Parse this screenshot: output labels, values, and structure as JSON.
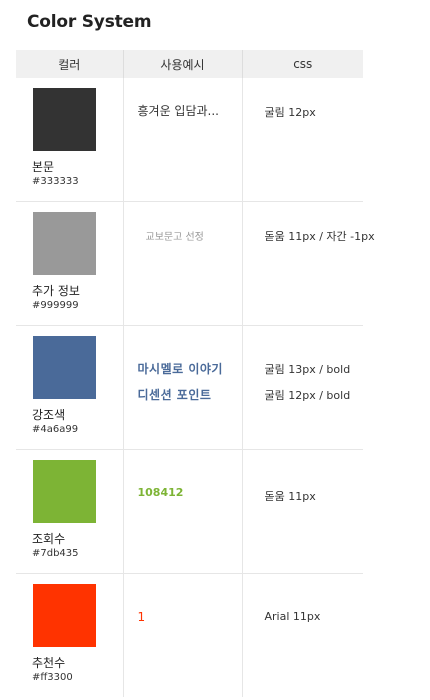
{
  "title": "Color System",
  "headers": {
    "color": "컬러",
    "usage": "사용예시",
    "css": "css"
  },
  "rows": [
    {
      "name": "본문",
      "hex": "#333333",
      "usage": [
        "흥겨운 입담과..."
      ],
      "css": [
        "굴림 12px"
      ]
    },
    {
      "name": "추가 정보",
      "hex": "#999999",
      "usage": [
        "교보문고 선정"
      ],
      "css": [
        "돋움 11px / 자간 -1px"
      ]
    },
    {
      "name": "강조색",
      "hex": "#4a6a99",
      "usage": [
        "마시멜로 이야기",
        "디센션 포인트"
      ],
      "css": [
        "굴림 13px / bold",
        "굴림 12px / bold"
      ]
    },
    {
      "name": "조회수",
      "hex": "#7db435",
      "usage": [
        "108412"
      ],
      "css": [
        "돋움 11px"
      ]
    },
    {
      "name": "추천수",
      "hex": "#ff3300",
      "usage": [
        "1"
      ],
      "css": [
        "Arial 11px"
      ]
    }
  ]
}
